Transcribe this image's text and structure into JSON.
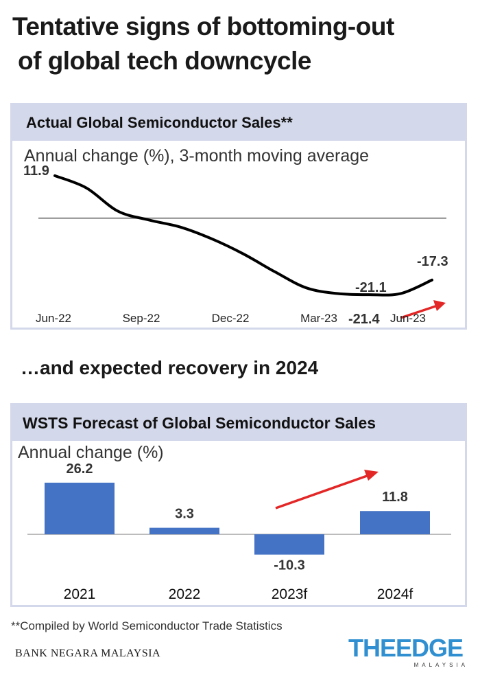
{
  "headline": {
    "line1": "Tentative signs of bottoming-out",
    "line2": "of global tech downcycle"
  },
  "mid_heading": "…and expected recovery in 2024",
  "footnote": "**Compiled by World Semiconductor Trade Statistics",
  "source": "BANK NEGARA MALAYSIA",
  "logo": {
    "main": "THEEDGE",
    "sub": "MALAYSIA"
  },
  "colors": {
    "panel_border": "#d3d8ea",
    "bar": "#4472c4",
    "line": "#000000",
    "arrow": "#e32626",
    "logo": "#2f8fd0"
  },
  "chart_data": [
    {
      "type": "line",
      "title": "Actual Global Semiconductor Sales**",
      "subtitle": "Annual change (%), 3-month moving average",
      "x": [
        0,
        1,
        2,
        3,
        4,
        5,
        6,
        7,
        8,
        9,
        10,
        11,
        12
      ],
      "values": [
        11.9,
        8.5,
        2.0,
        -0.5,
        -2.5,
        -5.8,
        -10.0,
        -15.0,
        -19.5,
        -21.1,
        -21.4,
        -21.1,
        -17.3
      ],
      "xticks": [
        "Jun-22",
        "Sep-22",
        "Dec-22",
        "Mar-23",
        "Jun-23"
      ],
      "annotations": {
        "start": "11.9",
        "a": "-21.1",
        "b": "-17.3",
        "c": "-21.4"
      },
      "ylim": [
        -26,
        14
      ],
      "baseline": 0
    },
    {
      "type": "bar",
      "title": "WSTS Forecast of Global Semiconductor Sales",
      "subtitle": "Annual change (%)",
      "categories": [
        "2021",
        "2022",
        "2023f",
        "2024f"
      ],
      "values": [
        26.2,
        3.3,
        -10.3,
        11.8
      ],
      "labels": [
        "26.2",
        "3.3",
        "-10.3",
        "11.8"
      ],
      "ylim": [
        -16,
        30
      ]
    }
  ]
}
